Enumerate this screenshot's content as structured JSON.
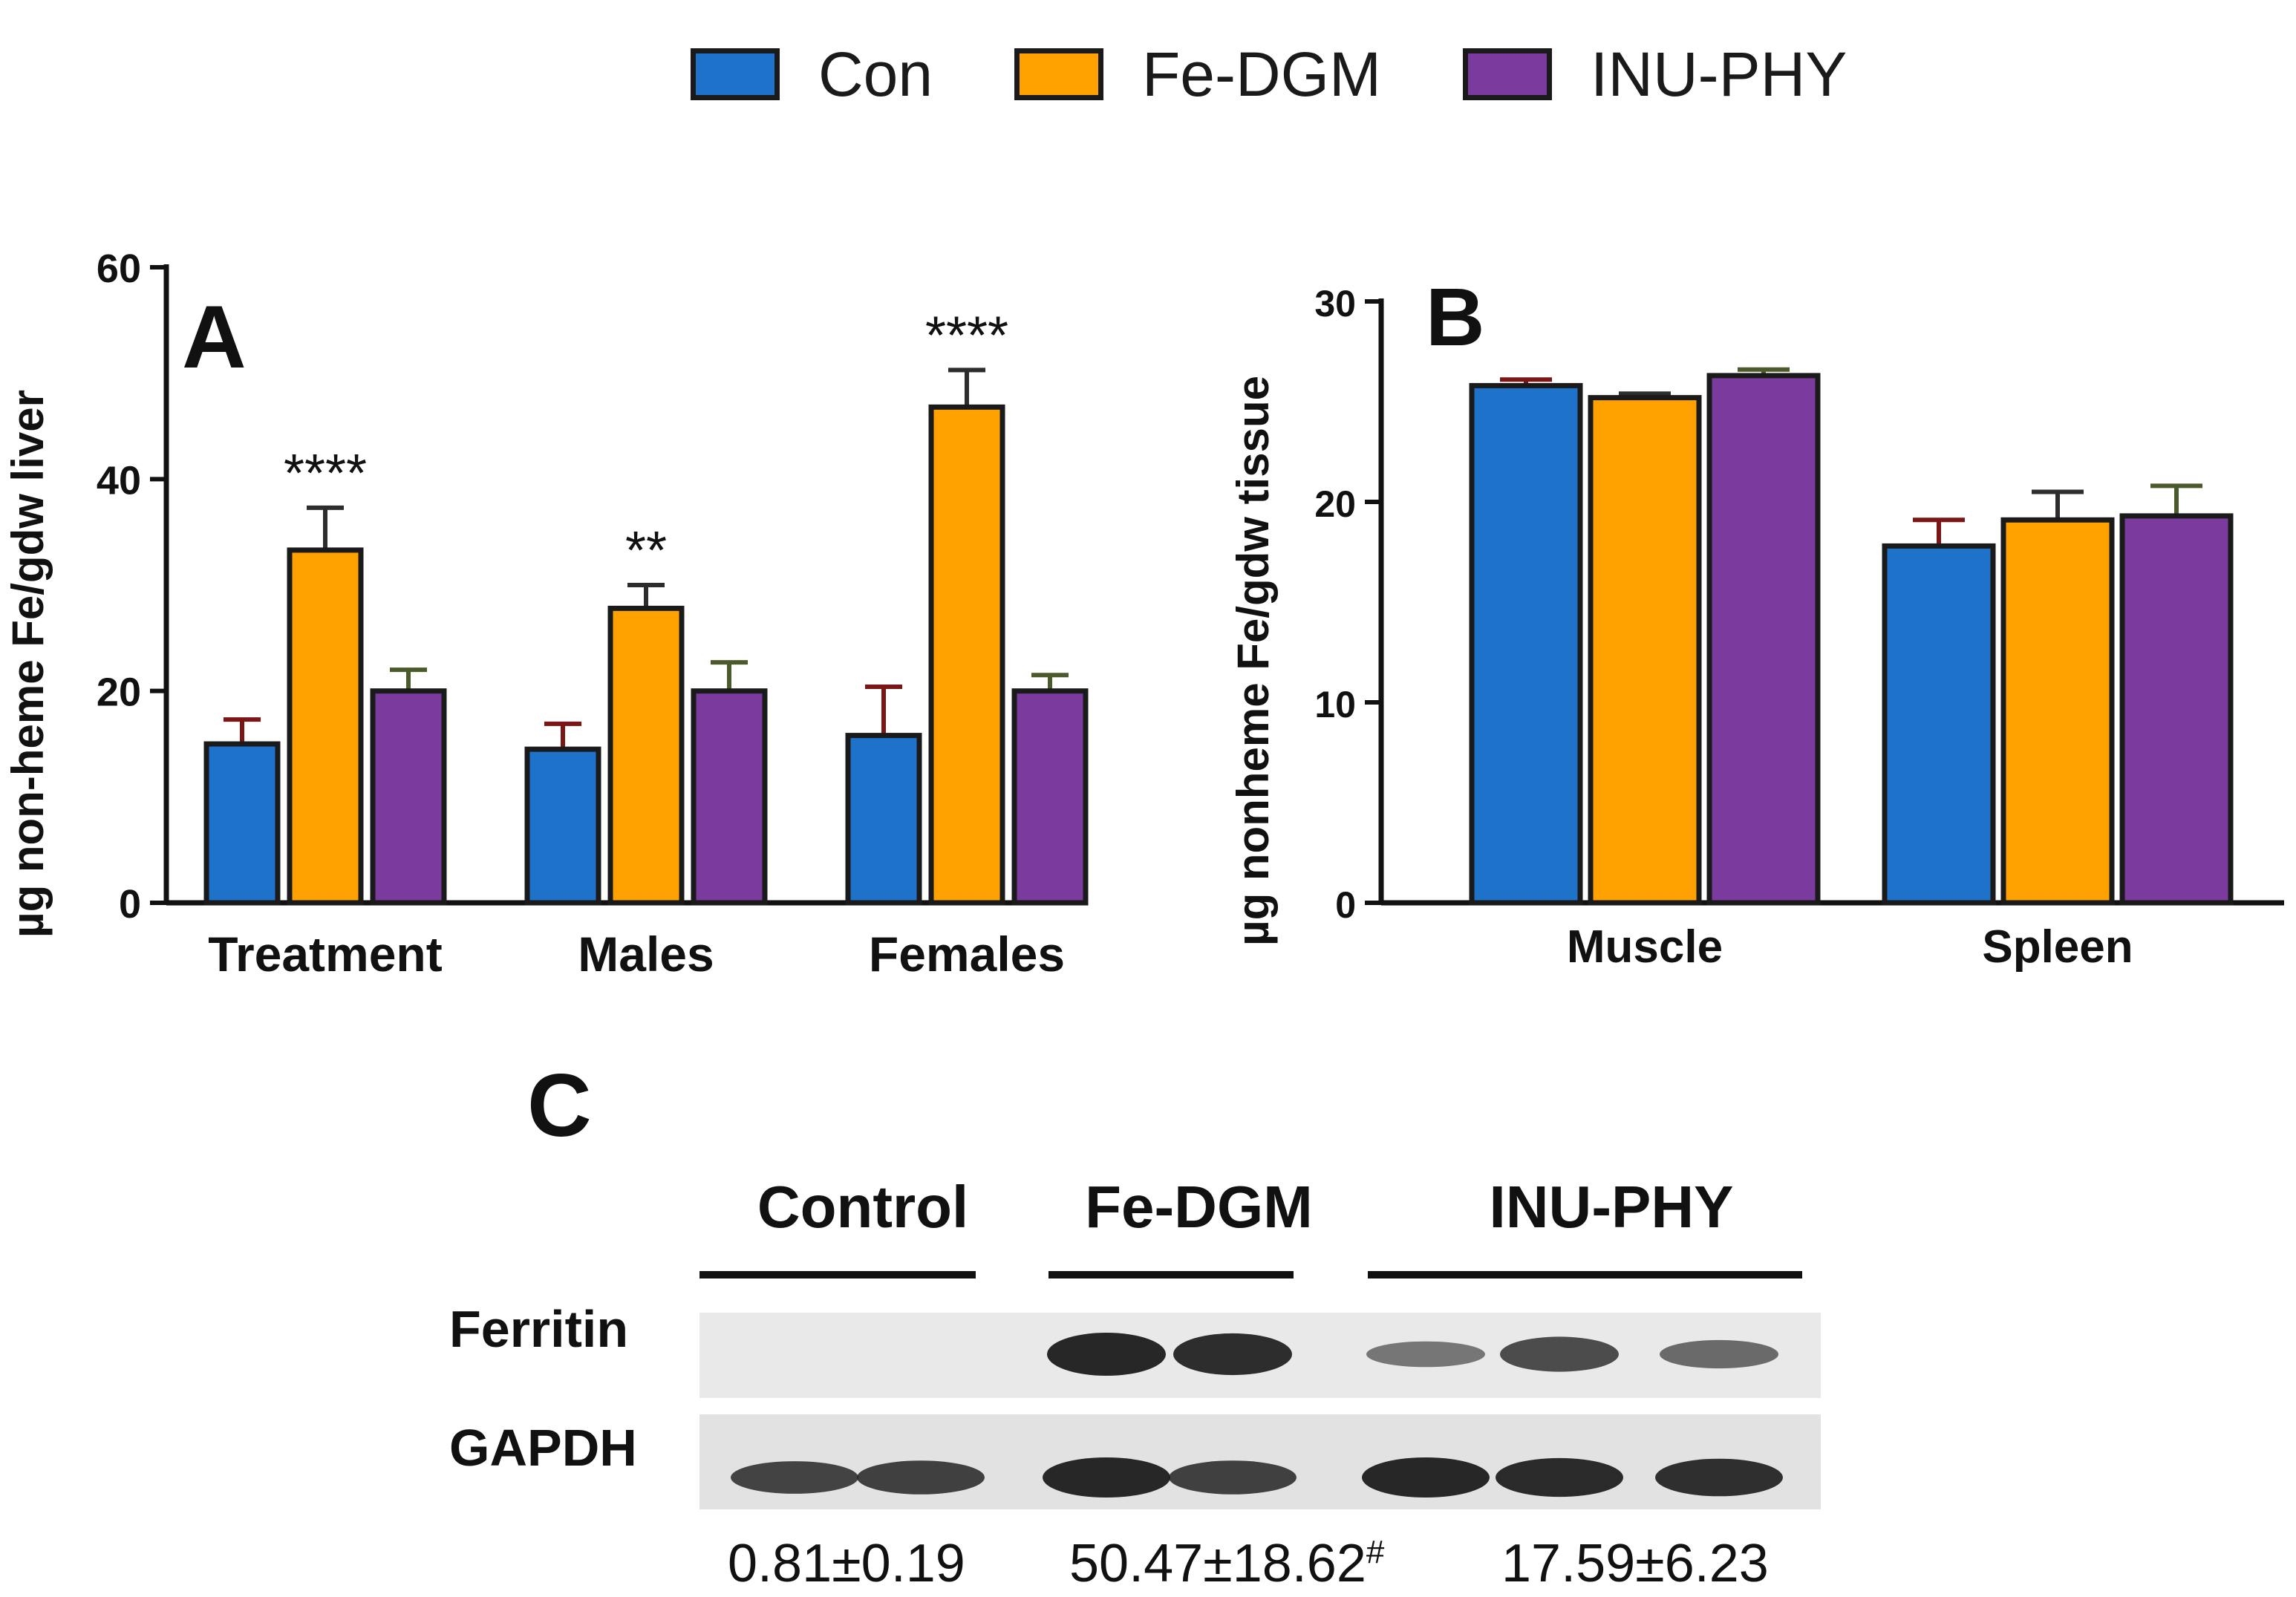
{
  "legend": [
    {
      "label": "Con",
      "color": "#1f72c9"
    },
    {
      "label": "Fe-DGM",
      "color": "#ffa200"
    },
    {
      "label": "INU-PHY",
      "color": "#7b3b9e"
    }
  ],
  "chart_data": [
    {
      "type": "bar",
      "panel_label": "A",
      "ylabel": "µg non-heme Fe/gdw liver",
      "ylim": [
        0,
        60
      ],
      "yticks": [
        "0",
        "20",
        "40",
        "60"
      ],
      "categories": [
        "Treatment",
        "Males",
        "Females"
      ],
      "series": [
        {
          "name": "Con",
          "color": "#1f72c9",
          "errcolor": "#7a1616",
          "values": [
            15.0,
            14.5,
            15.8
          ],
          "errors": [
            2.3,
            2.4,
            4.6
          ]
        },
        {
          "name": "Fe-DGM",
          "color": "#ffa200",
          "errcolor": "#2d2d2d",
          "values": [
            33.3,
            27.8,
            46.8
          ],
          "errors": [
            4.0,
            2.2,
            3.5
          ]
        },
        {
          "name": "INU-PHY",
          "color": "#7b3b9e",
          "errcolor": "#4a5a2a",
          "values": [
            20.0,
            20.0,
            20.0
          ],
          "errors": [
            2.0,
            2.7,
            1.5
          ]
        }
      ],
      "annotations": [
        {
          "category": "Treatment",
          "series": "Fe-DGM",
          "text": "****"
        },
        {
          "category": "Males",
          "series": "Fe-DGM",
          "text": "**"
        },
        {
          "category": "Females",
          "series": "Fe-DGM",
          "text": "****"
        }
      ]
    },
    {
      "type": "bar",
      "panel_label": "B",
      "ylabel": "µg nonheme Fe/gdw tissue",
      "ylim": [
        0,
        30
      ],
      "yticks": [
        "0",
        "10",
        "20",
        "30"
      ],
      "categories": [
        "Muscle",
        "Spleen"
      ],
      "series": [
        {
          "name": "Con",
          "color": "#1f72c9",
          "errcolor": "#7a1616",
          "values": [
            25.8,
            17.8
          ],
          "errors": [
            0.3,
            1.3
          ]
        },
        {
          "name": "Fe-DGM",
          "color": "#ffa200",
          "errcolor": "#2d2d2d",
          "values": [
            25.2,
            19.1
          ],
          "errors": [
            0.2,
            1.4
          ]
        },
        {
          "name": "INU-PHY",
          "color": "#7b3b9e",
          "errcolor": "#4a5a2a",
          "values": [
            26.3,
            19.3
          ],
          "errors": [
            0.3,
            1.5
          ]
        }
      ],
      "annotations": []
    }
  ],
  "panel_c": {
    "panel_label": "C",
    "groups": [
      "Control",
      "Fe-DGM",
      "INU-PHY"
    ],
    "rows": [
      "Ferritin",
      "GAPDH"
    ],
    "quant": [
      {
        "text": "0.81±0.19",
        "sup": ""
      },
      {
        "text": "50.47±18.62",
        "sup": "#"
      },
      {
        "text": "17.59±6.23",
        "sup": ""
      }
    ],
    "blot_lanes": {
      "ferritin": [
        0.0,
        0.0,
        1.0,
        0.95,
        0.35,
        0.7,
        0.45
      ],
      "gapdh": [
        0.7,
        0.75,
        1.0,
        0.75,
        1.0,
        0.95,
        0.9
      ]
    }
  }
}
